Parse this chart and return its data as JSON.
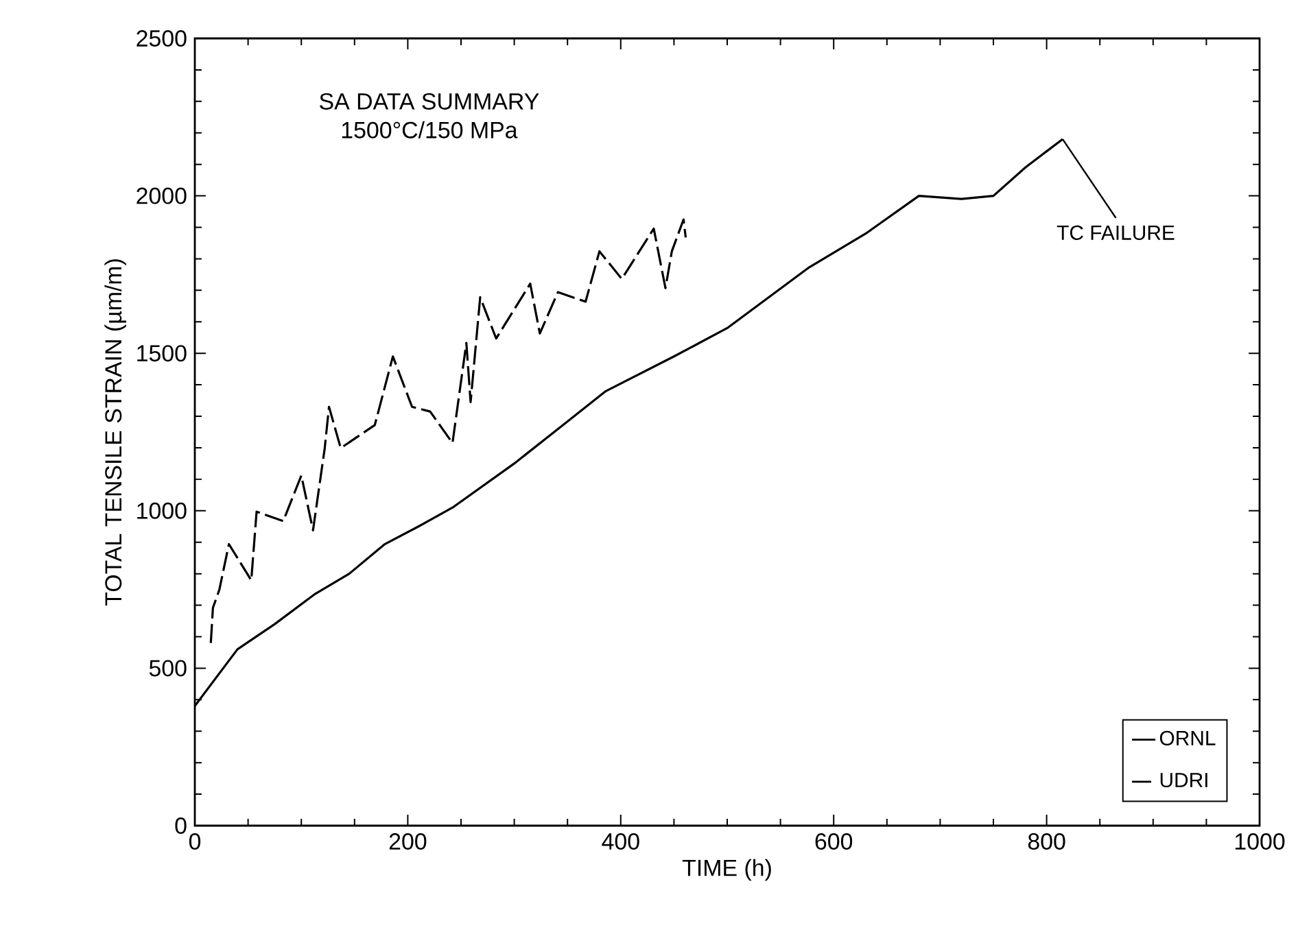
{
  "chart_data": {
    "type": "line",
    "title": "SA DATA SUMMARY",
    "subtitle": "1500°C/150 MPa",
    "xlabel": "TIME (h)",
    "ylabel": "TOTAL TENSILE STRAIN (µm/m)",
    "xlim": [
      0,
      1000
    ],
    "ylim": [
      0,
      2500
    ],
    "xticks": [
      0,
      200,
      400,
      600,
      800,
      1000
    ],
    "yticks": [
      0,
      500,
      1000,
      1500,
      2000,
      2500
    ],
    "grid": false,
    "legend": "bottom right",
    "annotations": [
      {
        "text": "TC FAILURE",
        "x": 815,
        "y": 2180
      }
    ],
    "series": [
      {
        "name": "ORNL",
        "color": "#000000",
        "line_style": "solid",
        "x": [
          0,
          20,
          40,
          75,
          113,
          145,
          178,
          210,
          242,
          300,
          345,
          386,
          450,
          500,
          577,
          630,
          680,
          720,
          750,
          780,
          815
        ],
        "values": [
          380,
          470,
          560,
          640,
          736,
          800,
          893,
          950,
          1010,
          1150,
          1270,
          1380,
          1490,
          1580,
          1773,
          1880,
          2000,
          1990,
          2000,
          2090,
          2180
        ]
      },
      {
        "name": "UDRI",
        "color": "#000000",
        "line_style": "dashed",
        "x": [
          15,
          17,
          23,
          32,
          53,
          58,
          83,
          100,
          111,
          122,
          126,
          137,
          169,
          186,
          204,
          221,
          242,
          255,
          259,
          268,
          283,
          315,
          324,
          341,
          367,
          380,
          401,
          431,
          442,
          448,
          459,
          461
        ],
        "values": [
          580,
          692,
          749,
          894,
          779,
          997,
          967,
          1112,
          938,
          1199,
          1330,
          1199,
          1272,
          1490,
          1330,
          1315,
          1215,
          1533,
          1345,
          1678,
          1547,
          1721,
          1563,
          1694,
          1664,
          1824,
          1736,
          1896,
          1707,
          1824,
          1925,
          1868
        ]
      }
    ]
  }
}
